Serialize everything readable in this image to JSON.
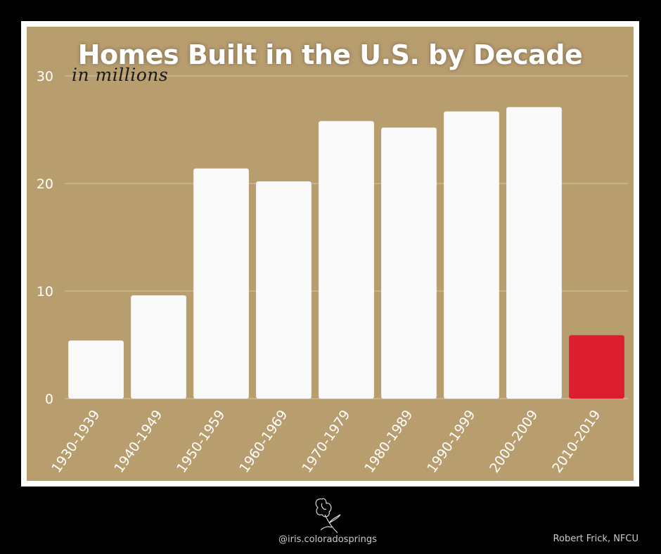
{
  "chart_data": {
    "type": "bar",
    "title": "Homes Built in the U.S. by Decade",
    "subtitle": "in millions",
    "categories": [
      "1930-1939",
      "1940-1949",
      "1950-1959",
      "1960-1969",
      "1970-1979",
      "1980-1989",
      "1990-1999",
      "2000-2009",
      "2010-2019"
    ],
    "values": [
      5.4,
      9.6,
      21.4,
      20.2,
      25.8,
      25.2,
      26.7,
      27.1,
      5.9
    ],
    "ylim": [
      0,
      30
    ],
    "yticks": [
      0,
      10,
      20,
      30
    ],
    "grid": true,
    "xlabel": "",
    "ylabel": "",
    "bar_color": "#fafafa",
    "highlight_index": 8,
    "highlight_color": "#dc1f30",
    "background_color": "#b89d6f"
  },
  "footer": {
    "handle": "@iris.coloradosprings",
    "credit": "Robert Frick, NFCU",
    "logo_icon": "iris-flower-icon"
  }
}
